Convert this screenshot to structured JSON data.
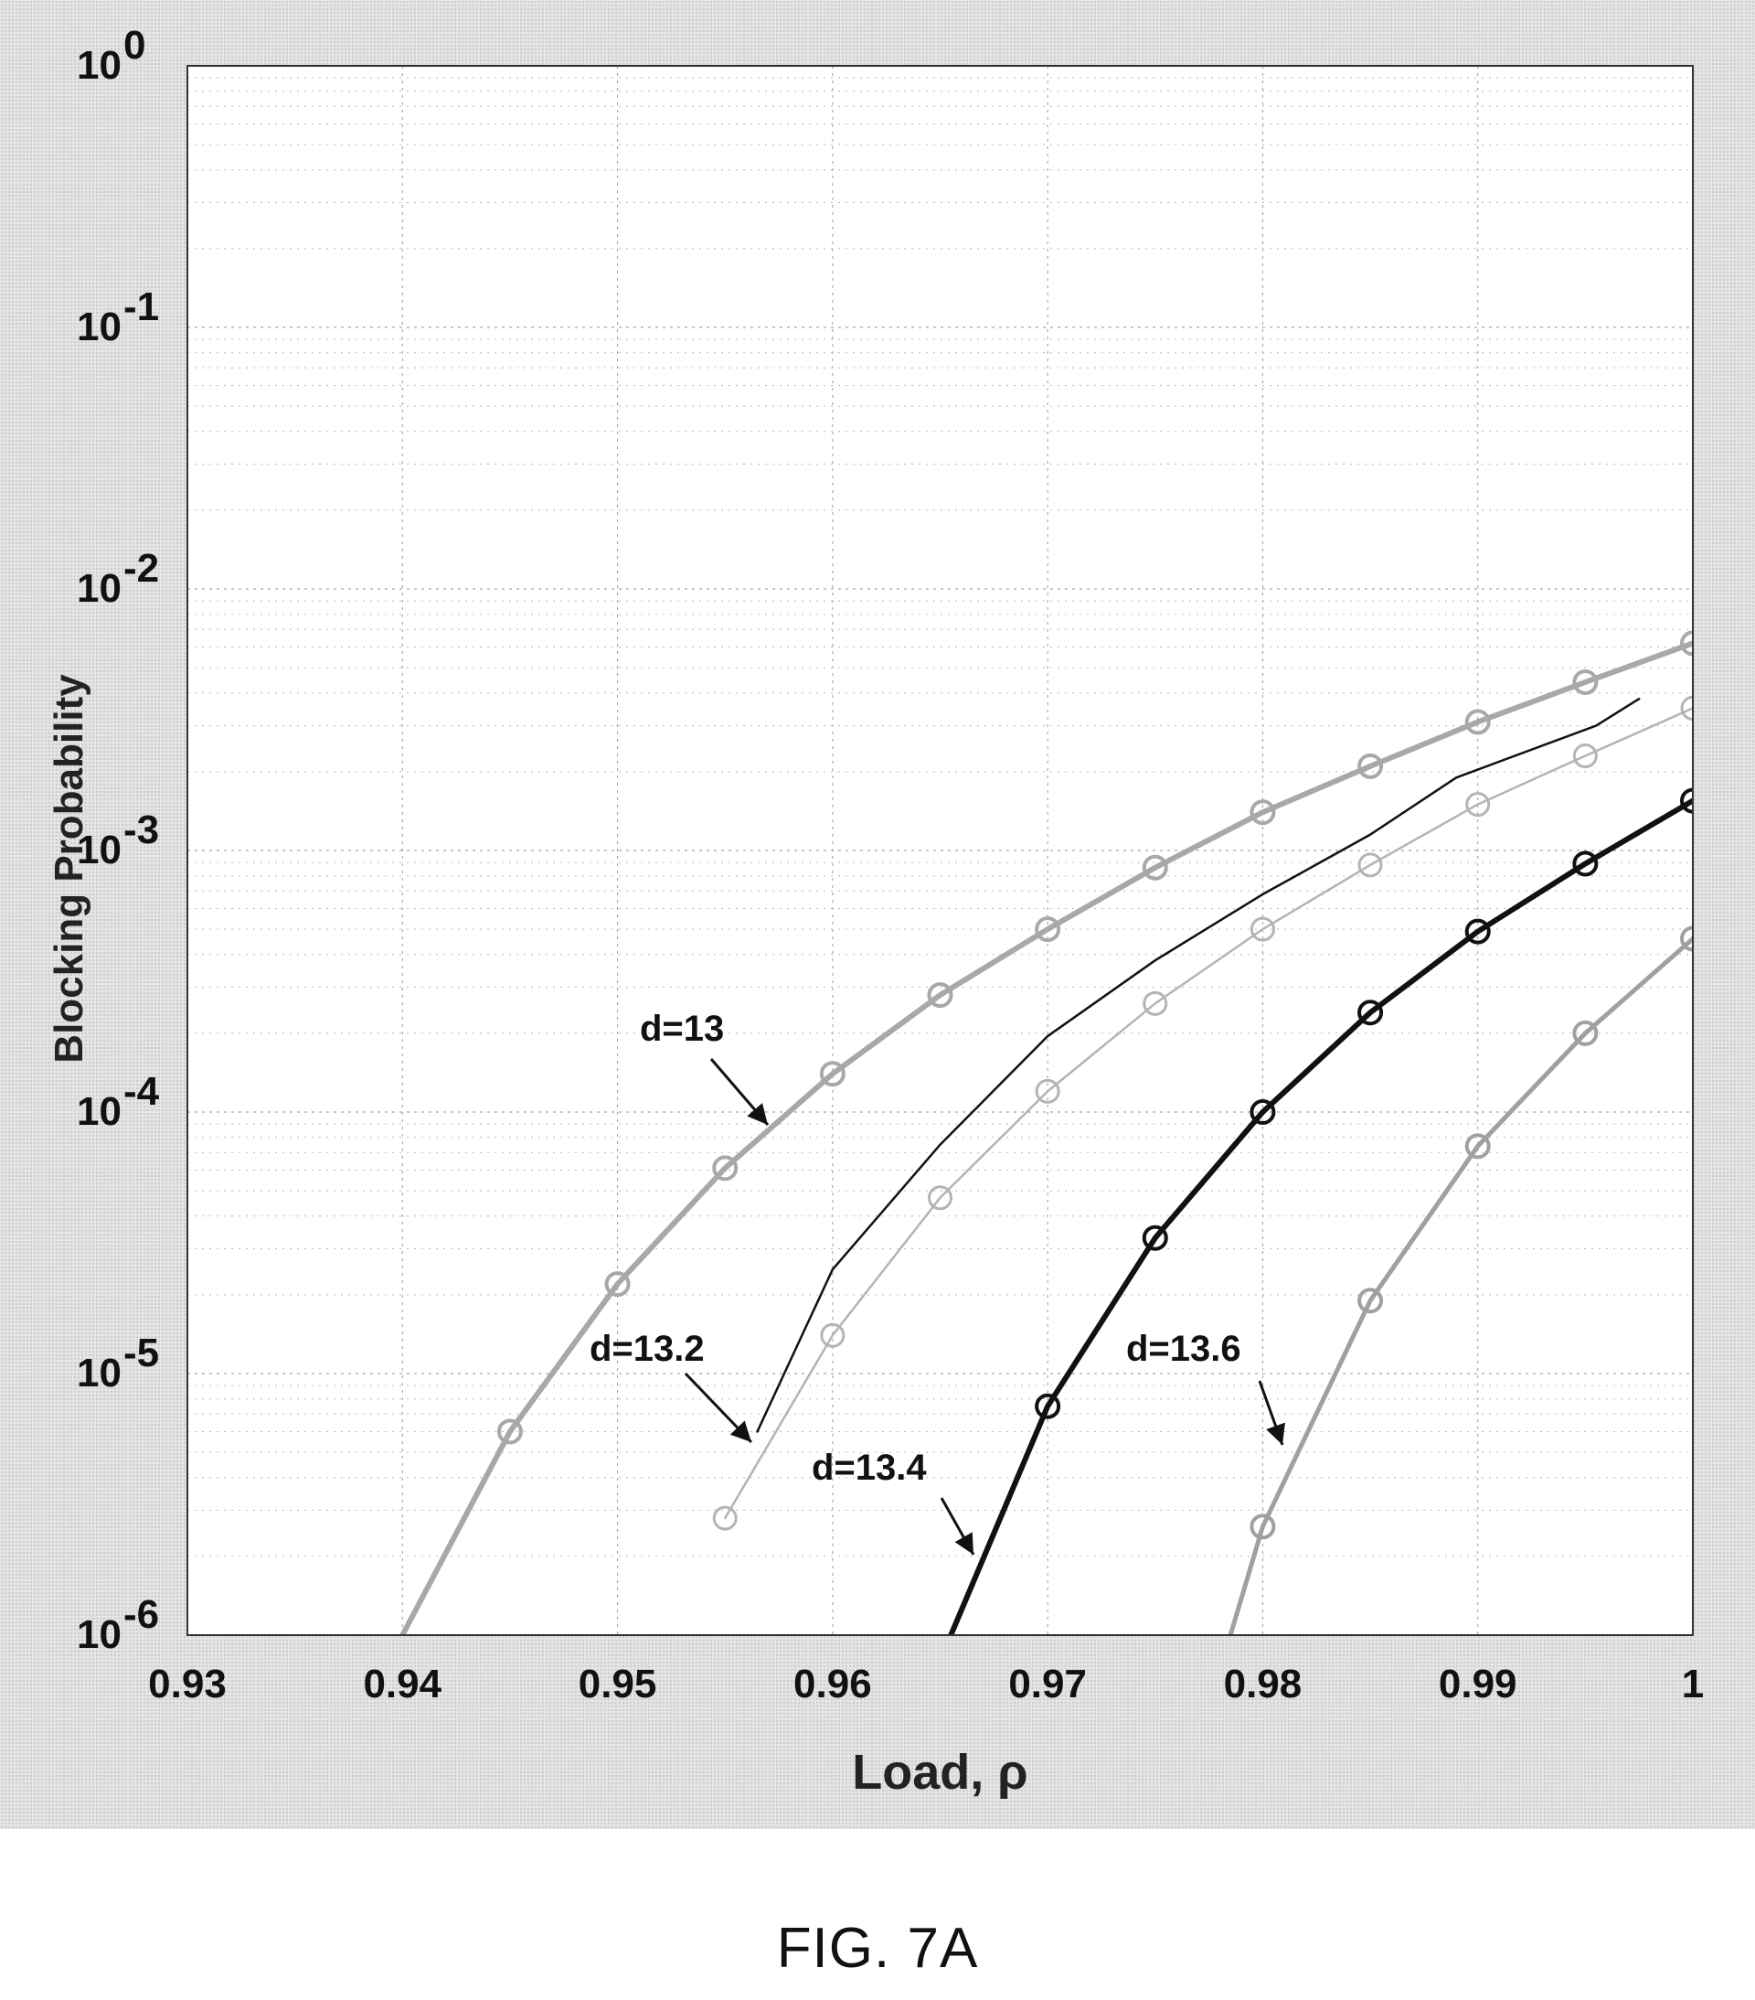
{
  "figure_caption": "FIG. 7A",
  "chart_data": {
    "type": "line",
    "xlabel": "Load,  ρ",
    "ylabel": "Blocking Probability",
    "xlim": [
      0.93,
      1.0
    ],
    "ylim": [
      1e-06,
      1
    ],
    "yscale": "log",
    "grid": true,
    "x_ticks": [
      "0.93",
      "0.94",
      "0.95",
      "0.96",
      "0.97",
      "0.98",
      "0.99",
      "1"
    ],
    "y_ticks": [
      {
        "value": 1e-06,
        "base": "10",
        "exp": "-6"
      },
      {
        "value": 1e-05,
        "base": "10",
        "exp": "-5"
      },
      {
        "value": 0.0001,
        "base": "10",
        "exp": "-4"
      },
      {
        "value": 0.001,
        "base": "10",
        "exp": "-3"
      },
      {
        "value": 0.01,
        "base": "10",
        "exp": "-2"
      },
      {
        "value": 0.1,
        "base": "10",
        "exp": "-1"
      },
      {
        "value": 1,
        "base": "10",
        "exp": "0"
      }
    ],
    "series": [
      {
        "label": "d=13",
        "color": "#a8a8a8",
        "width": 6,
        "markers": true,
        "x": [
          0.94,
          0.945,
          0.95,
          0.955,
          0.96,
          0.965,
          0.97,
          0.975,
          0.98,
          0.985,
          0.99,
          0.995,
          1.0
        ],
        "y": [
          1e-06,
          6e-06,
          2.2e-05,
          6.1e-05,
          0.00014,
          0.00028,
          0.0005,
          0.00086,
          0.0014,
          0.0021,
          0.0031,
          0.0044,
          0.0062
        ]
      },
      {
        "label": "d=13.2",
        "color": "#111111",
        "width": 2.5,
        "markers": false,
        "x": [
          0.9565,
          0.96,
          0.965,
          0.97,
          0.975,
          0.98,
          0.985,
          0.989,
          0.9955,
          0.9975
        ],
        "y": [
          6e-06,
          2.5e-05,
          7.5e-05,
          0.000195,
          0.00038,
          0.00068,
          0.00115,
          0.0019,
          0.003,
          0.0038
        ]
      },
      {
        "label": "",
        "color": "#b4b4b4",
        "width": 2.5,
        "markers": true,
        "x": [
          0.955,
          0.96,
          0.965,
          0.97,
          0.975,
          0.98,
          0.985,
          0.99,
          0.995,
          1.0
        ],
        "y": [
          2.8e-06,
          1.4e-05,
          4.7e-05,
          0.00012,
          0.00026,
          0.0005,
          0.00088,
          0.0015,
          0.0023,
          0.0035
        ]
      },
      {
        "label": "d=13.4",
        "color": "#111111",
        "width": 6,
        "markers": true,
        "x": [
          0.9655,
          0.97,
          0.975,
          0.98,
          0.985,
          0.99,
          0.995,
          1.0
        ],
        "y": [
          1e-06,
          7.5e-06,
          3.3e-05,
          0.0001,
          0.00024,
          0.00049,
          0.00089,
          0.00155
        ]
      },
      {
        "label": "d=13.6",
        "color": "#a0a0a0",
        "width": 5,
        "markers": true,
        "x": [
          0.9785,
          0.98,
          0.985,
          0.99,
          0.995,
          1.0
        ],
        "y": [
          1e-06,
          2.6e-06,
          1.9e-05,
          7.4e-05,
          0.0002,
          0.00046
        ]
      }
    ],
    "annotations": [
      {
        "text": "d=13"
      },
      {
        "text": "d=13.2"
      },
      {
        "text": "d=13.4"
      },
      {
        "text": "d=13.6"
      }
    ]
  }
}
